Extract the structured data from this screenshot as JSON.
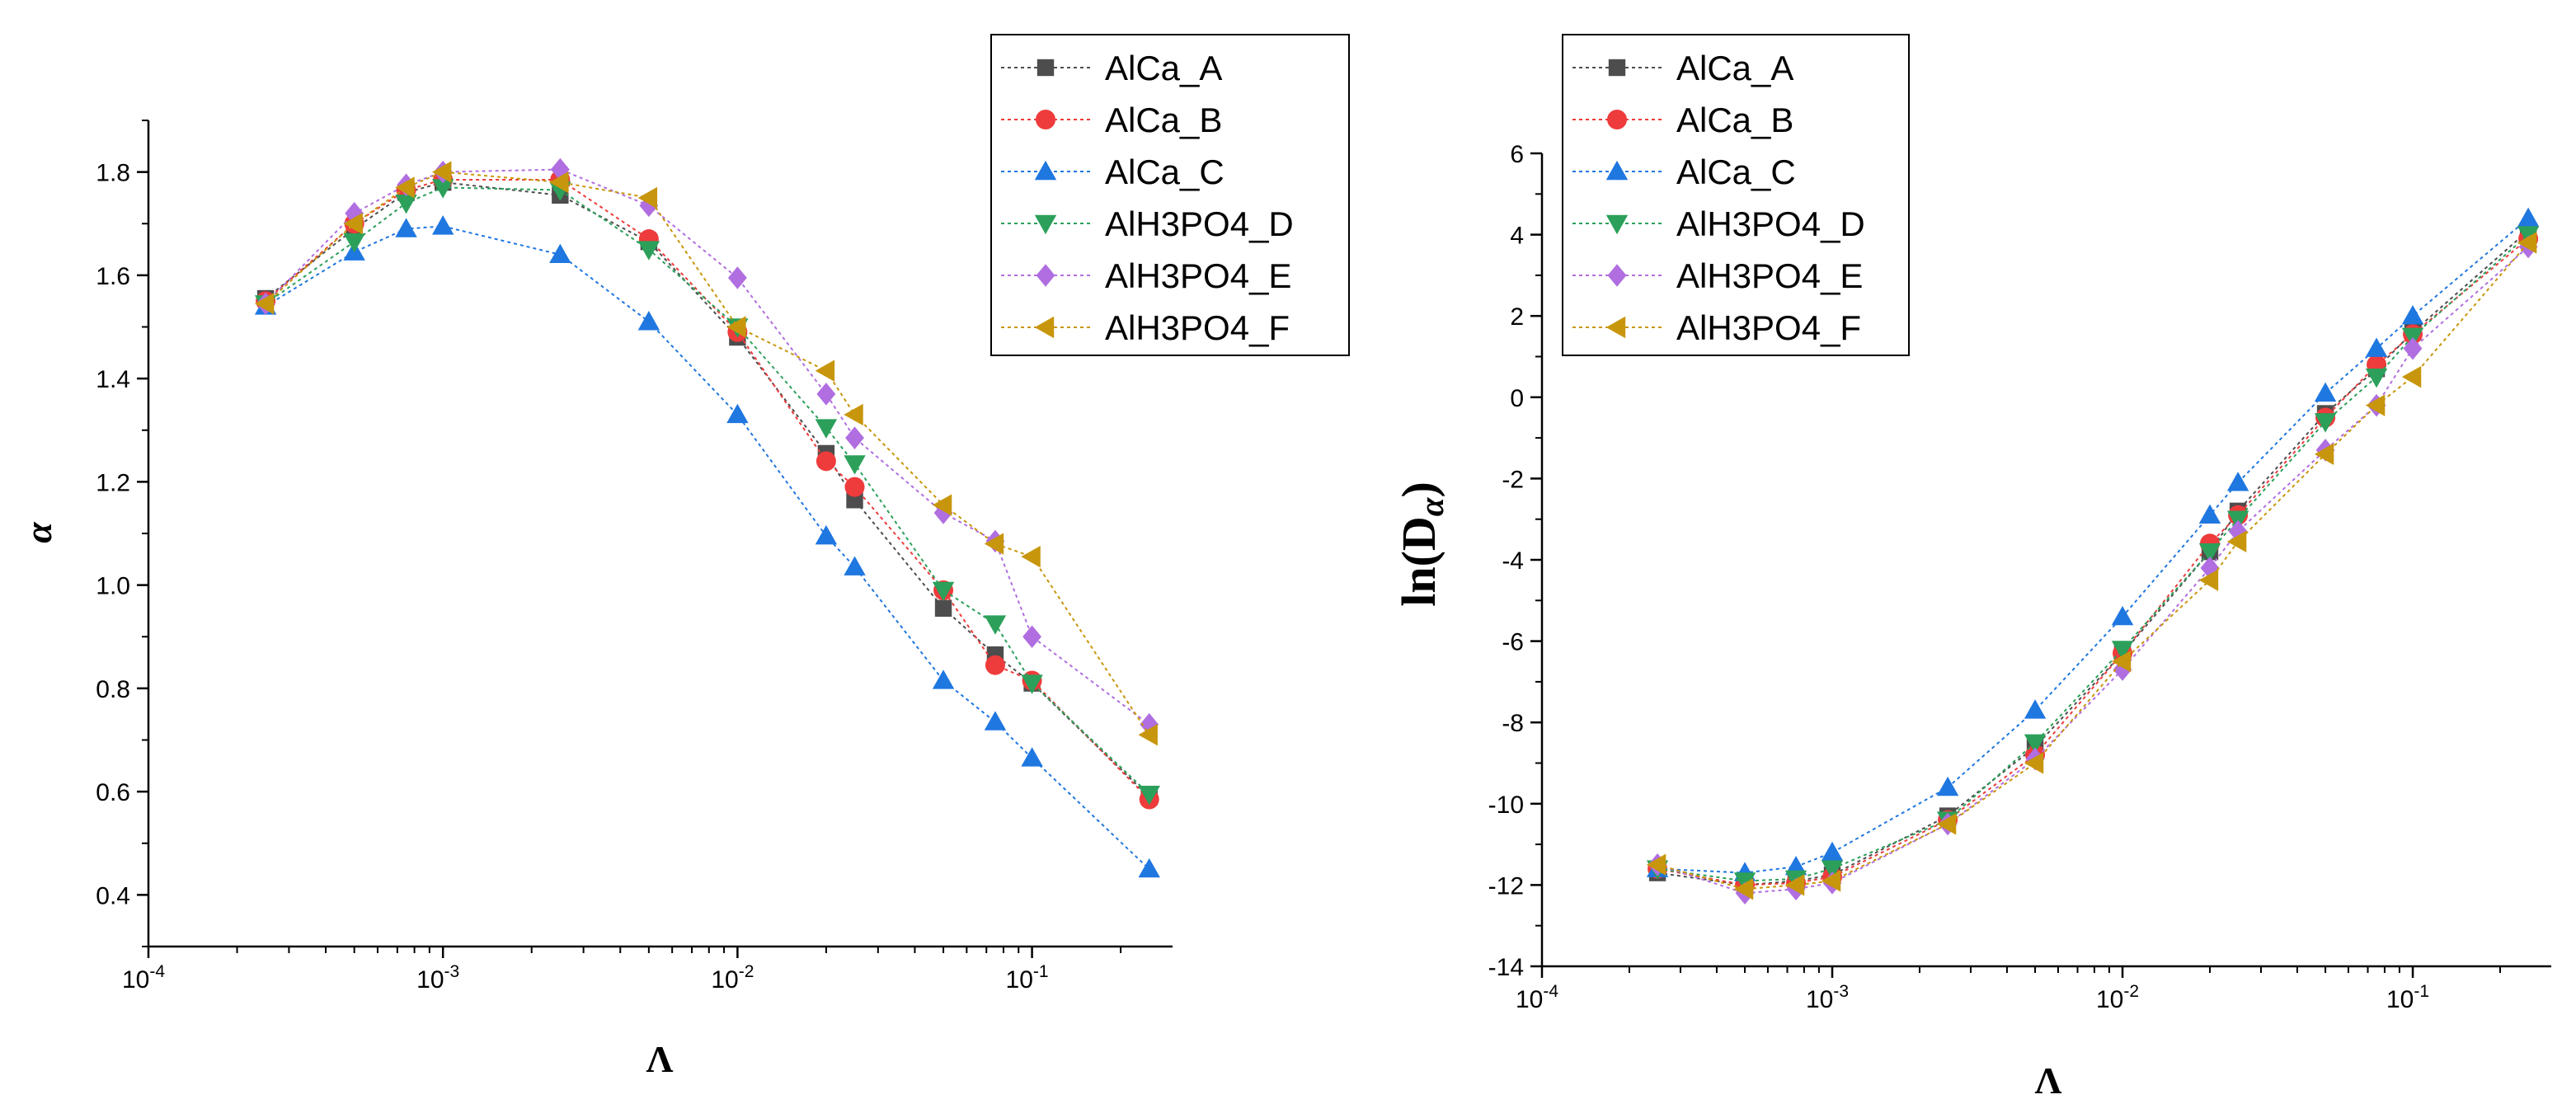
{
  "chart_data": [
    {
      "type": "scatter",
      "id": "alpha",
      "title": "",
      "xlabel": "Λ",
      "ylabel": "α",
      "xscale": "log",
      "xlim": [
        0.0001,
        0.3
      ],
      "ylim": [
        0.3,
        1.9
      ],
      "xticks": [
        {
          "base": "10",
          "exp": "-4",
          "value": 0.0001
        },
        {
          "base": "10",
          "exp": "-3",
          "value": 0.001
        },
        {
          "base": "10",
          "exp": "-2",
          "value": 0.01
        },
        {
          "base": "10",
          "exp": "-1",
          "value": 0.1
        }
      ],
      "yticks": [
        "0.4",
        "0.6",
        "0.8",
        "1.0",
        "1.2",
        "1.4",
        "1.6",
        "1.8"
      ],
      "legend_position": "top-right",
      "x": [
        0.00025,
        0.0005,
        0.00075,
        0.001,
        0.0025,
        0.005,
        0.01,
        0.02,
        0.025,
        0.05,
        0.075,
        0.1,
        0.25
      ],
      "series": [
        {
          "name": "AlCa_A",
          "values": [
            1.555,
            1.69,
            1.76,
            1.78,
            1.755,
            1.665,
            1.48,
            1.255,
            1.165,
            0.955,
            0.865,
            0.81,
            0.59
          ]
        },
        {
          "name": "AlCa_B",
          "values": [
            1.55,
            1.7,
            1.765,
            1.785,
            1.785,
            1.67,
            1.49,
            1.24,
            1.19,
            0.99,
            0.845,
            0.815,
            0.585
          ]
        },
        {
          "name": "AlCa_C",
          "values": [
            1.54,
            1.645,
            1.69,
            1.695,
            1.64,
            1.51,
            1.33,
            1.095,
            1.035,
            0.815,
            0.735,
            0.665,
            0.45
          ]
        },
        {
          "name": "AlH3PO4_D",
          "values": [
            1.545,
            1.665,
            1.74,
            1.77,
            1.765,
            1.65,
            1.5,
            1.305,
            1.235,
            0.99,
            0.925,
            0.81,
            0.595
          ]
        },
        {
          "name": "AlH3PO4_E",
          "values": [
            1.545,
            1.72,
            1.775,
            1.8,
            1.805,
            1.735,
            1.595,
            1.37,
            1.285,
            1.14,
            1.085,
            0.9,
            0.73
          ]
        },
        {
          "name": "AlH3PO4_F",
          "values": [
            1.545,
            1.7,
            1.77,
            1.8,
            1.78,
            1.75,
            1.5,
            1.415,
            1.33,
            1.155,
            1.08,
            1.055,
            0.71
          ]
        }
      ]
    },
    {
      "type": "scatter",
      "id": "lnD",
      "title": "",
      "xlabel": "Λ",
      "ylabel": "ln(D",
      "ylabel_sub": "α",
      "ylabel_close": ")",
      "xscale": "log",
      "xlim": [
        0.0001,
        0.3
      ],
      "ylim": [
        -14,
        6
      ],
      "xticks": [
        {
          "base": "10",
          "exp": "-4",
          "value": 0.0001
        },
        {
          "base": "10",
          "exp": "-3",
          "value": 0.001
        },
        {
          "base": "10",
          "exp": "-2",
          "value": 0.01
        },
        {
          "base": "10",
          "exp": "-1",
          "value": 0.1
        }
      ],
      "yticks": [
        "-14",
        "-12",
        "-10",
        "-8",
        "-6",
        "-4",
        "-2",
        "0",
        "2",
        "4",
        "6"
      ],
      "legend_position": "top-left",
      "x": [
        0.00025,
        0.0005,
        0.00075,
        0.001,
        0.0025,
        0.005,
        0.01,
        0.02,
        0.025,
        0.05,
        0.075,
        0.1,
        0.25
      ],
      "series": [
        {
          "name": "AlCa_A",
          "values": [
            -11.7,
            -12.0,
            -11.9,
            -11.75,
            -10.3,
            -8.6,
            -6.3,
            -3.8,
            -2.8,
            -0.4,
            0.7,
            1.6,
            4.1
          ]
        },
        {
          "name": "AlCa_B",
          "values": [
            -11.6,
            -12.0,
            -11.95,
            -11.8,
            -10.4,
            -8.8,
            -6.3,
            -3.6,
            -2.9,
            -0.5,
            0.8,
            1.55,
            3.9
          ]
        },
        {
          "name": "AlCa_C",
          "values": [
            -11.6,
            -11.7,
            -11.55,
            -11.2,
            -9.6,
            -7.7,
            -5.4,
            -2.9,
            -2.1,
            0.1,
            1.2,
            2.0,
            4.4
          ]
        },
        {
          "name": "AlH3PO4_D",
          "values": [
            -11.6,
            -11.9,
            -11.85,
            -11.6,
            -10.4,
            -8.5,
            -6.2,
            -3.8,
            -3.0,
            -0.6,
            0.5,
            1.5,
            4.0
          ]
        },
        {
          "name": "AlH3PO4_E",
          "values": [
            -11.5,
            -12.2,
            -12.1,
            -11.95,
            -10.5,
            -8.9,
            -6.7,
            -4.2,
            -3.3,
            -1.3,
            -0.2,
            1.2,
            3.7
          ]
        },
        {
          "name": "AlH3PO4_F",
          "values": [
            -11.5,
            -12.1,
            -12.0,
            -11.9,
            -10.5,
            -9.0,
            -6.5,
            -4.5,
            -3.55,
            -1.4,
            -0.2,
            0.5,
            3.8
          ]
        }
      ]
    }
  ],
  "style": {
    "colors": {
      "AlCa_A": "#4d4d4d",
      "AlCa_B": "#ee3b3b",
      "AlCa_C": "#1f77e0",
      "AlH3PO4_D": "#2ca05a",
      "AlH3PO4_E": "#b06ee0",
      "AlH3PO4_F": "#c8960c"
    },
    "markers": {
      "AlCa_A": "square-icon",
      "AlCa_B": "circle-icon",
      "AlCa_C": "triangle-up-icon",
      "AlH3PO4_D": "triangle-down-icon",
      "AlH3PO4_E": "diamond-icon",
      "AlH3PO4_F": "triangle-left-icon"
    }
  }
}
